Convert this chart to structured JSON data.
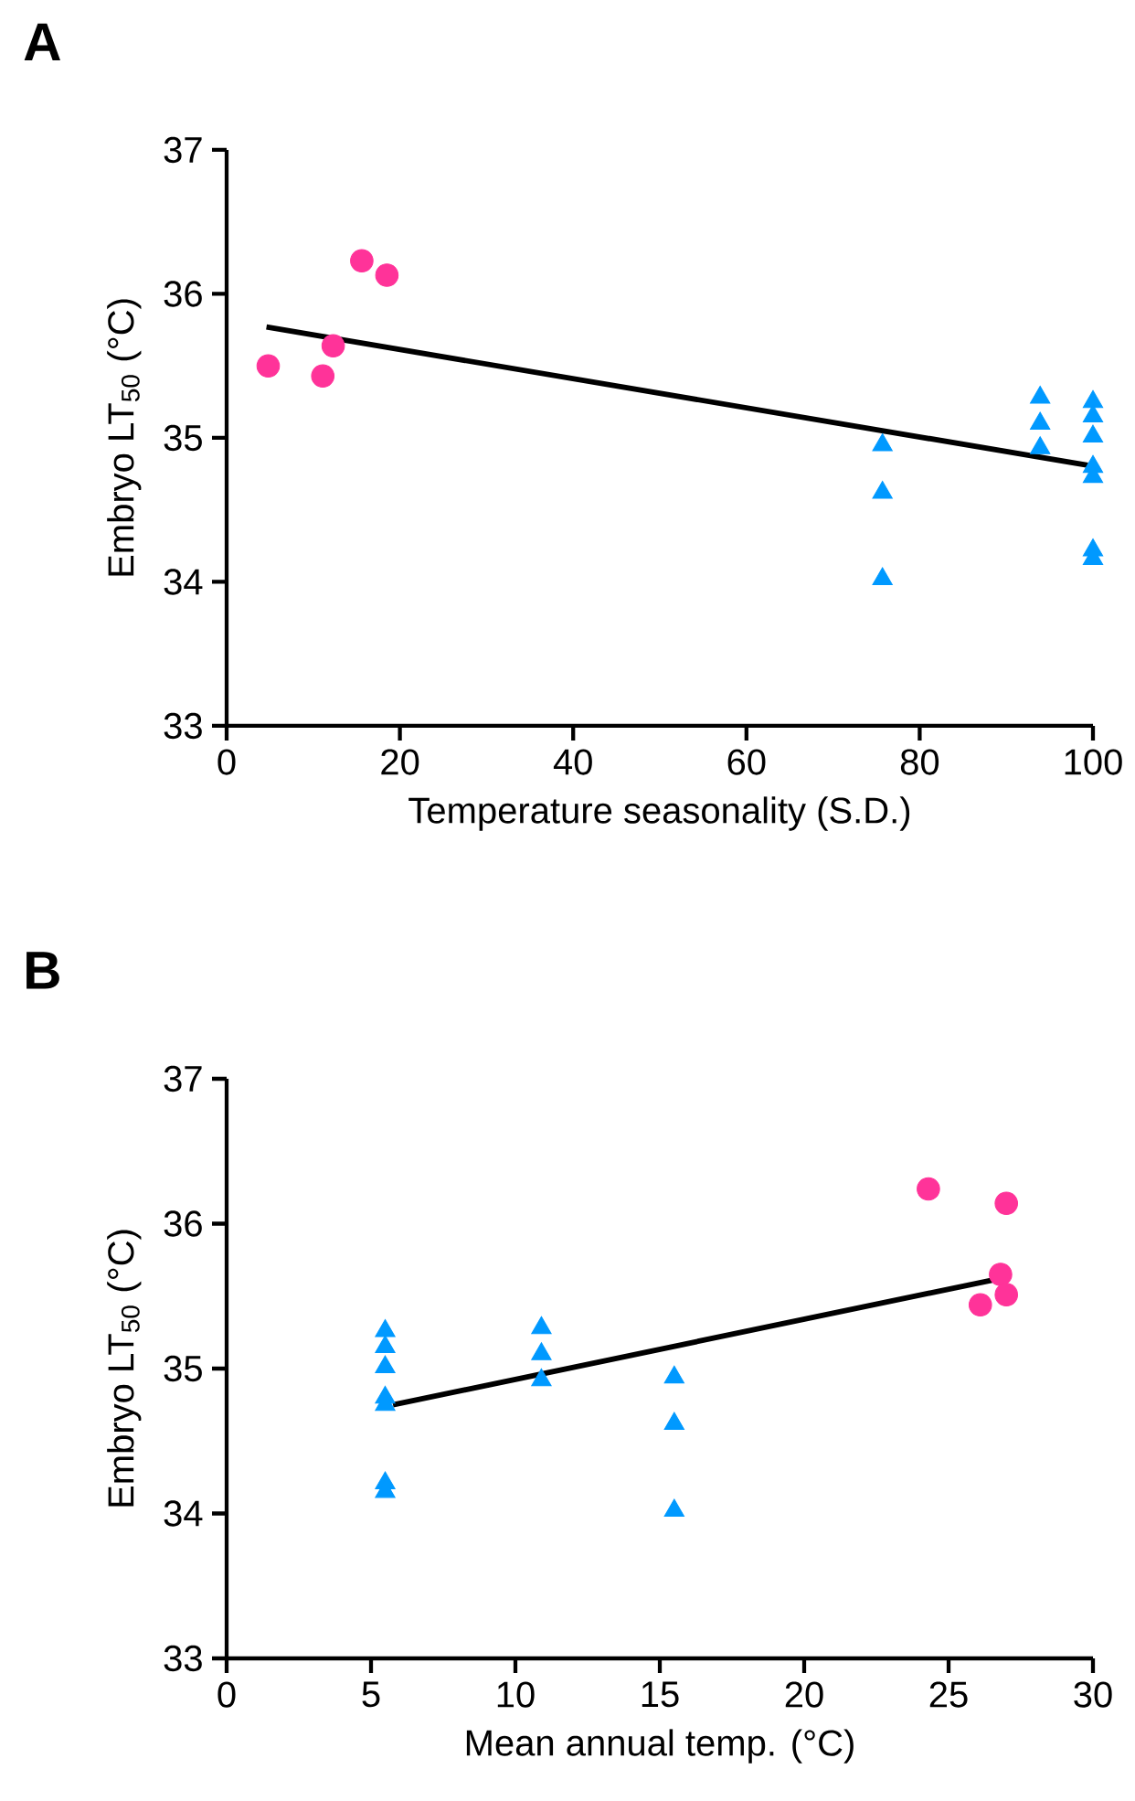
{
  "chart_data": [
    {
      "type": "scatter",
      "title": "A",
      "xlabel": "Temperature seasonality (S.D.)",
      "ylabel": "Embryo LT$_{50}$ (°C)",
      "xlim": [
        0,
        100
      ],
      "xticks": [
        0,
        20,
        40,
        60,
        80,
        100
      ],
      "ylim": [
        33,
        37
      ],
      "yticks": [
        33,
        34,
        35,
        36,
        37
      ],
      "series": [
        {
          "color": "#ff3399",
          "marker": "circle",
          "x": [
            4.8,
            11.1,
            12.3,
            15.6,
            18.5
          ],
          "values": [
            35.5,
            35.43,
            35.64,
            36.23,
            36.13
          ]
        },
        {
          "color": "#0099ff",
          "marker": "triangle",
          "x": [
            75.7,
            75.7,
            75.7,
            93.9,
            93.9,
            93.9,
            100,
            100,
            100,
            100,
            100,
            100,
            100
          ],
          "values": [
            34.95,
            34.62,
            34.02,
            35.28,
            35.1,
            34.93,
            35.25,
            35.15,
            35.01,
            34.8,
            34.73,
            34.22,
            34.16
          ]
        },
        {
          "type": "line",
          "color": "#000000",
          "x": [
            4.6,
            99.4
          ],
          "values": [
            35.77,
            34.81
          ]
        }
      ]
    },
    {
      "type": "scatter",
      "title": "B",
      "xlabel": "Mean annual temp. (°C)",
      "ylabel": "Embryo LT$_{50}$ (°C)",
      "xlim": [
        0,
        30
      ],
      "xticks": [
        0,
        5,
        10,
        15,
        20,
        25,
        30
      ],
      "ylim": [
        33,
        37
      ],
      "yticks": [
        33,
        34,
        35,
        36,
        37
      ],
      "series": [
        {
          "color": "#0099ff",
          "marker": "triangle",
          "x": [
            5.49,
            5.49,
            5.49,
            5.49,
            5.49,
            5.49,
            5.49,
            10.9,
            10.9,
            10.9,
            15.5,
            15.5,
            15.5
          ],
          "values": [
            35.26,
            35.15,
            35.01,
            34.8,
            34.75,
            34.21,
            34.15,
            35.28,
            35.1,
            34.92,
            34.94,
            34.62,
            34.02
          ]
        },
        {
          "color": "#ff3399",
          "marker": "circle",
          "x": [
            24.3,
            27.0,
            26.8,
            27.0,
            26.1
          ],
          "values": [
            36.24,
            36.14,
            35.65,
            35.51,
            35.44
          ]
        },
        {
          "type": "line",
          "color": "#000000",
          "x": [
            5.76,
            26.5
          ],
          "values": [
            34.75,
            35.61
          ]
        }
      ]
    }
  ]
}
